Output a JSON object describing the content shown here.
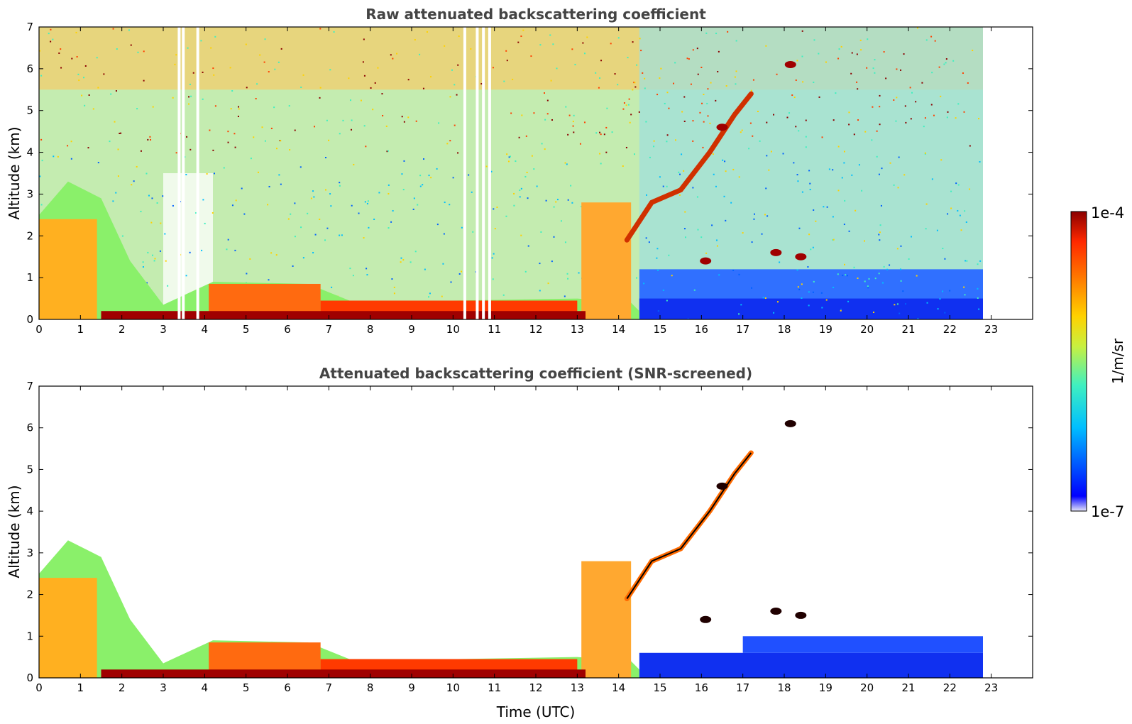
{
  "chart_data": [
    {
      "type": "heatmap",
      "title": "Raw attenuated backscattering coefficient",
      "xlabel": "",
      "ylabel": "Altitude (km)",
      "xlim": [
        0,
        24
      ],
      "ylim": [
        0,
        7
      ],
      "xticks": [
        0,
        1,
        2,
        3,
        4,
        5,
        6,
        7,
        8,
        9,
        10,
        11,
        12,
        13,
        14,
        15,
        16,
        17,
        18,
        19,
        20,
        21,
        22,
        23
      ],
      "yticks": [
        0,
        1,
        2,
        3,
        4,
        5,
        6,
        7
      ],
      "data_end_time": 22.8,
      "features": {
        "surface_layer_top_km": [
          [
            0,
            2.5
          ],
          [
            0.7,
            3.3
          ],
          [
            1.5,
            2.9
          ],
          [
            2.2,
            1.4
          ],
          [
            3.0,
            0.35
          ],
          [
            4.2,
            0.9
          ],
          [
            6.5,
            0.85
          ],
          [
            7.5,
            0.45
          ],
          [
            10.0,
            0.45
          ],
          [
            13.0,
            0.5
          ],
          [
            14.3,
            0.4
          ],
          [
            14.5,
            0.2
          ]
        ],
        "plume_13_14": {
          "t": [
            13.1,
            14.3
          ],
          "top_km": 2.8
        },
        "ascending_layer": [
          [
            14.2,
            1.9
          ],
          [
            14.8,
            2.8
          ],
          [
            15.5,
            3.1
          ],
          [
            16.2,
            4.0
          ],
          [
            16.8,
            4.9
          ],
          [
            17.2,
            5.4
          ]
        ],
        "clouds": [
          {
            "t": 18.15,
            "z": 6.1
          },
          {
            "t": 16.5,
            "z": 4.6
          },
          {
            "t": 16.1,
            "z": 1.4
          },
          {
            "t": 17.8,
            "z": 1.6
          },
          {
            "t": 18.4,
            "z": 1.5
          }
        ],
        "missing_data_times": [
          3.35,
          3.45,
          3.8,
          10.25,
          10.55,
          10.7,
          10.85
        ]
      }
    },
    {
      "type": "heatmap",
      "title": "Attenuated backscattering coefficient (SNR-screened)",
      "xlabel": "Time (UTC)",
      "ylabel": "Altitude (km)",
      "xlim": [
        0,
        24
      ],
      "ylim": [
        0,
        7
      ],
      "xticks": [
        0,
        1,
        2,
        3,
        4,
        5,
        6,
        7,
        8,
        9,
        10,
        11,
        12,
        13,
        14,
        15,
        16,
        17,
        18,
        19,
        20,
        21,
        22,
        23
      ],
      "yticks": [
        0,
        1,
        2,
        3,
        4,
        5,
        6,
        7
      ],
      "data_end_time": 22.8
    }
  ],
  "colorbar": {
    "label": "1/m/sr",
    "max_label": "1e-4",
    "min_label": "1e-7",
    "colors": [
      "#e6e6fa",
      "#0000ff",
      "#00bfff",
      "#3ff0c0",
      "#c8f040",
      "#ffd200",
      "#ff7800",
      "#ff2800",
      "#8b0000"
    ]
  }
}
